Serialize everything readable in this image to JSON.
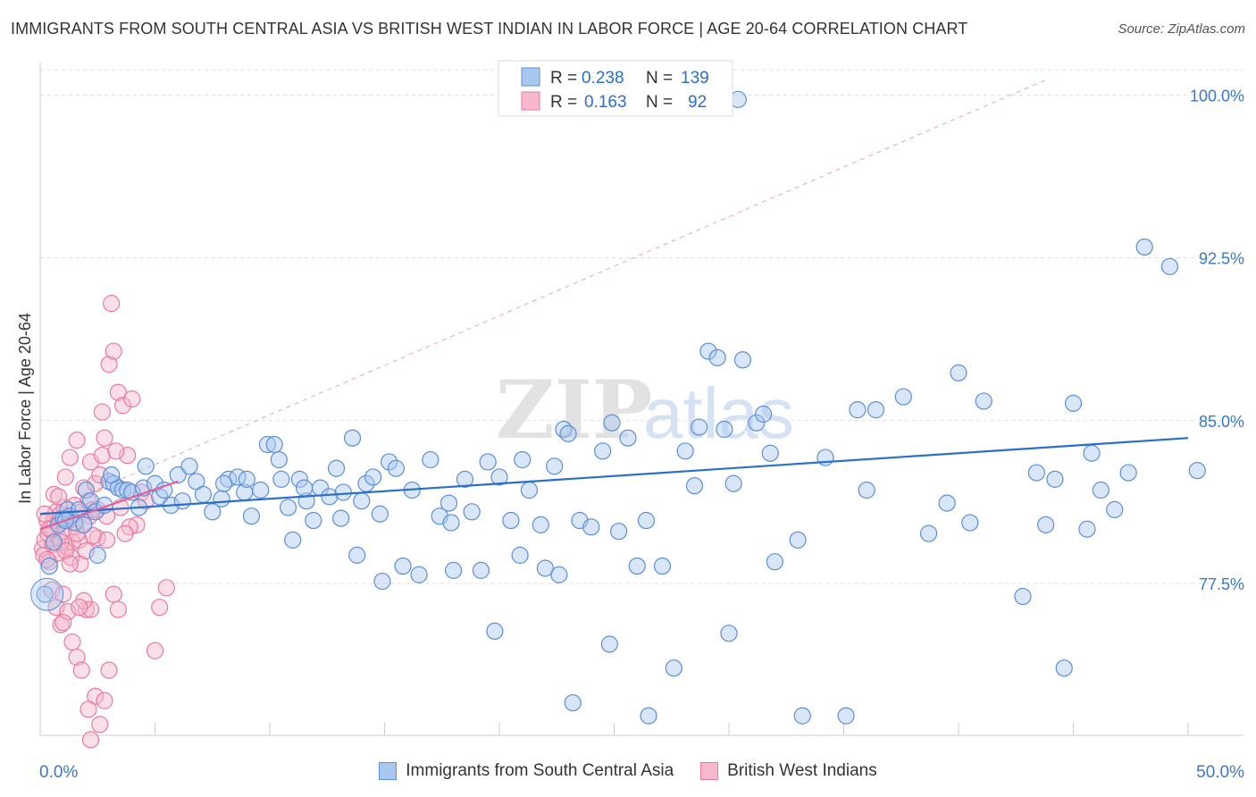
{
  "title": "IMMIGRANTS FROM SOUTH CENTRAL ASIA VS BRITISH WEST INDIAN IN LABOR FORCE | AGE 20-64 CORRELATION CHART",
  "source": "Source: ZipAtlas.com",
  "watermark": {
    "zip": "ZIP",
    "atlas": "atlas"
  },
  "colors": {
    "blue_fill": "#a8c8f0",
    "blue_stroke": "#5b8fd6",
    "blue_line": "#2a6fcc",
    "pink_fill": "#f5b8cc",
    "pink_stroke": "#e87aa0",
    "pink_line": "#e0609a",
    "axis_text": "#3a78c9",
    "grid": "#dddddd"
  },
  "chart_data": {
    "type": "scatter",
    "xlabel": "",
    "ylabel": "In Labor Force | Age 20-64",
    "xlim": [
      0,
      50
    ],
    "ylim": [
      70.5,
      101.5
    ],
    "x_tick_labels": [
      "0.0%",
      "50.0%"
    ],
    "y_ticks": [
      77.5,
      85.0,
      92.5,
      100.0
    ],
    "y_tick_labels": [
      "77.5%",
      "85.0%",
      "92.5%",
      "100.0%"
    ],
    "grid": "horizontal dashed",
    "legend_top": [
      {
        "r_label": "R =",
        "r_value": "0.238",
        "n_label": "N =",
        "n_value": "139"
      },
      {
        "r_label": "R =",
        "r_value": "0.163",
        "n_label": "N =",
        "n_value": "92"
      }
    ],
    "series": [
      {
        "name": "Immigrants from South Central Asia",
        "color": "blue",
        "trend": {
          "x": [
            0,
            50
          ],
          "y": [
            80.7,
            84.2
          ]
        },
        "points": [
          [
            0.2,
            77.0
          ],
          [
            0.4,
            78.3
          ],
          [
            0.6,
            79.4
          ],
          [
            0.8,
            80.2
          ],
          [
            1.0,
            80.5
          ],
          [
            1.2,
            80.9
          ],
          [
            1.3,
            80.6
          ],
          [
            1.5,
            80.3
          ],
          [
            1.7,
            80.9
          ],
          [
            2.0,
            81.8
          ],
          [
            2.2,
            81.3
          ],
          [
            2.4,
            80.8
          ],
          [
            2.5,
            78.8
          ],
          [
            3.0,
            82.2
          ],
          [
            3.2,
            82.1
          ],
          [
            3.4,
            81.9
          ],
          [
            3.6,
            81.8
          ],
          [
            3.8,
            81.8
          ],
          [
            4.0,
            81.7
          ],
          [
            4.3,
            81.0
          ],
          [
            4.5,
            81.9
          ],
          [
            4.6,
            82.9
          ],
          [
            5.0,
            82.1
          ],
          [
            5.2,
            81.5
          ],
          [
            5.4,
            81.8
          ],
          [
            5.7,
            81.1
          ],
          [
            6.0,
            82.5
          ],
          [
            6.5,
            82.9
          ],
          [
            6.8,
            82.2
          ],
          [
            7.1,
            81.6
          ],
          [
            7.5,
            80.8
          ],
          [
            7.9,
            81.4
          ],
          [
            8.2,
            82.3
          ],
          [
            8.6,
            82.4
          ],
          [
            8.9,
            81.7
          ],
          [
            9.2,
            80.6
          ],
          [
            9.6,
            81.8
          ],
          [
            9.9,
            83.9
          ],
          [
            10.2,
            83.9
          ],
          [
            10.4,
            83.2
          ],
          [
            10.8,
            81.0
          ],
          [
            11.3,
            82.3
          ],
          [
            11.6,
            81.3
          ],
          [
            11.9,
            80.4
          ],
          [
            12.2,
            81.9
          ],
          [
            12.6,
            81.5
          ],
          [
            12.9,
            82.8
          ],
          [
            13.1,
            80.5
          ],
          [
            13.6,
            84.2
          ],
          [
            13.8,
            78.8
          ],
          [
            14.0,
            81.3
          ],
          [
            14.2,
            82.1
          ],
          [
            14.5,
            82.4
          ],
          [
            14.8,
            80.7
          ],
          [
            15.2,
            83.1
          ],
          [
            15.5,
            82.8
          ],
          [
            15.8,
            78.3
          ],
          [
            16.2,
            81.8
          ],
          [
            16.5,
            77.9
          ],
          [
            17.0,
            83.2
          ],
          [
            17.4,
            80.6
          ],
          [
            17.8,
            81.2
          ],
          [
            17.9,
            80.3
          ],
          [
            18.0,
            78.1
          ],
          [
            18.5,
            82.3
          ],
          [
            18.8,
            80.8
          ],
          [
            19.2,
            78.1
          ],
          [
            19.5,
            83.1
          ],
          [
            20.0,
            82.4
          ],
          [
            20.5,
            80.4
          ],
          [
            20.9,
            78.8
          ],
          [
            21.3,
            81.8
          ],
          [
            21.8,
            80.2
          ],
          [
            22.0,
            78.2
          ],
          [
            22.4,
            82.9
          ],
          [
            22.8,
            84.6
          ],
          [
            23.0,
            84.4
          ],
          [
            23.5,
            80.4
          ],
          [
            24.0,
            80.1
          ],
          [
            24.5,
            83.6
          ],
          [
            24.9,
            84.9
          ],
          [
            25.2,
            79.9
          ],
          [
            25.6,
            84.2
          ],
          [
            26.0,
            78.3
          ],
          [
            26.4,
            80.4
          ],
          [
            27.1,
            78.3
          ],
          [
            27.6,
            73.6
          ],
          [
            28.1,
            83.6
          ],
          [
            28.5,
            82.0
          ],
          [
            28.7,
            84.7
          ],
          [
            29.1,
            88.2
          ],
          [
            29.5,
            87.9
          ],
          [
            29.8,
            84.6
          ],
          [
            30.2,
            82.1
          ],
          [
            30.6,
            87.8
          ],
          [
            31.2,
            84.9
          ],
          [
            31.5,
            85.3
          ],
          [
            31.8,
            83.5
          ],
          [
            32.0,
            78.5
          ],
          [
            33.0,
            79.5
          ],
          [
            34.2,
            83.3
          ],
          [
            35.1,
            71.4
          ],
          [
            35.6,
            85.5
          ],
          [
            36.0,
            81.8
          ],
          [
            36.4,
            85.5
          ],
          [
            37.6,
            86.1
          ],
          [
            38.7,
            79.8
          ],
          [
            39.5,
            81.2
          ],
          [
            40.0,
            87.2
          ],
          [
            40.5,
            80.3
          ],
          [
            41.1,
            85.9
          ],
          [
            42.8,
            76.9
          ],
          [
            43.4,
            82.6
          ],
          [
            43.8,
            80.2
          ],
          [
            44.2,
            82.3
          ],
          [
            44.6,
            73.6
          ],
          [
            45.0,
            85.8
          ],
          [
            45.6,
            80.0
          ],
          [
            45.8,
            83.5
          ],
          [
            46.2,
            81.8
          ],
          [
            46.8,
            80.9
          ],
          [
            47.4,
            82.6
          ],
          [
            48.1,
            93.0
          ],
          [
            49.2,
            92.1
          ],
          [
            50.4,
            82.7
          ],
          [
            1.1,
            80.4
          ],
          [
            1.9,
            80.2
          ],
          [
            2.8,
            81.1
          ],
          [
            3.1,
            82.5
          ],
          [
            6.2,
            81.3
          ],
          [
            8.0,
            82.1
          ],
          [
            9.0,
            82.3
          ],
          [
            10.5,
            82.3
          ],
          [
            11.5,
            81.9
          ],
          [
            13.2,
            81.7
          ],
          [
            21.0,
            83.2
          ],
          [
            26.5,
            71.4
          ],
          [
            30.0,
            75.2
          ],
          [
            23.2,
            72.0
          ],
          [
            33.2,
            71.4
          ],
          [
            24.8,
            74.7
          ],
          [
            22.6,
            77.9
          ],
          [
            19.8,
            75.3
          ],
          [
            14.9,
            77.6
          ],
          [
            11.0,
            79.5
          ],
          [
            30.4,
            99.8
          ]
        ]
      },
      {
        "name": "British West Indians",
        "color": "pink",
        "trend": {
          "x": [
            0,
            6.0
          ],
          "y": [
            80.0,
            82.2
          ]
        },
        "points": [
          [
            0.1,
            79.1
          ],
          [
            0.15,
            78.8
          ],
          [
            0.2,
            79.5
          ],
          [
            0.3,
            80.4
          ],
          [
            0.35,
            79.8
          ],
          [
            0.4,
            78.5
          ],
          [
            0.5,
            80.0
          ],
          [
            0.55,
            79.3
          ],
          [
            0.6,
            81.6
          ],
          [
            0.7,
            80.8
          ],
          [
            0.75,
            78.9
          ],
          [
            0.8,
            79.6
          ],
          [
            0.85,
            80.3
          ],
          [
            0.9,
            80.7
          ],
          [
            1.0,
            79.9
          ],
          [
            1.05,
            81.0
          ],
          [
            1.1,
            82.4
          ],
          [
            1.15,
            79.2
          ],
          [
            1.2,
            80.5
          ],
          [
            1.3,
            83.3
          ],
          [
            1.35,
            78.7
          ],
          [
            1.4,
            79.4
          ],
          [
            1.5,
            81.1
          ],
          [
            1.55,
            80.1
          ],
          [
            1.6,
            84.1
          ],
          [
            1.7,
            79.5
          ],
          [
            1.75,
            78.4
          ],
          [
            1.8,
            80.8
          ],
          [
            1.9,
            81.9
          ],
          [
            2.0,
            79.0
          ],
          [
            2.1,
            81.3
          ],
          [
            2.15,
            80.6
          ],
          [
            2.2,
            83.1
          ],
          [
            2.3,
            80.9
          ],
          [
            2.4,
            82.1
          ],
          [
            2.5,
            79.6
          ],
          [
            2.6,
            82.5
          ],
          [
            2.7,
            83.4
          ],
          [
            2.8,
            84.2
          ],
          [
            2.9,
            79.5
          ],
          [
            3.0,
            87.6
          ],
          [
            3.1,
            90.4
          ],
          [
            3.2,
            88.2
          ],
          [
            3.4,
            86.3
          ],
          [
            3.5,
            81.0
          ],
          [
            3.6,
            85.7
          ],
          [
            3.8,
            83.4
          ],
          [
            4.0,
            86.0
          ],
          [
            4.2,
            80.2
          ],
          [
            4.4,
            81.7
          ],
          [
            4.6,
            81.3
          ],
          [
            0.5,
            77.2
          ],
          [
            0.7,
            76.4
          ],
          [
            0.9,
            75.6
          ],
          [
            1.0,
            77.0
          ],
          [
            1.2,
            76.2
          ],
          [
            1.4,
            74.8
          ],
          [
            1.6,
            74.1
          ],
          [
            1.8,
            73.5
          ],
          [
            2.0,
            76.3
          ],
          [
            2.2,
            76.3
          ],
          [
            2.4,
            72.3
          ],
          [
            2.6,
            71.0
          ],
          [
            2.8,
            72.1
          ],
          [
            3.0,
            73.5
          ],
          [
            3.2,
            77.0
          ],
          [
            3.4,
            76.3
          ],
          [
            5.0,
            74.4
          ],
          [
            5.2,
            76.4
          ],
          [
            5.5,
            77.3
          ],
          [
            2.7,
            85.4
          ],
          [
            3.3,
            83.6
          ],
          [
            3.9,
            80.1
          ],
          [
            1.9,
            76.7
          ],
          [
            2.1,
            71.7
          ],
          [
            0.9,
            79.4
          ],
          [
            1.1,
            79.0
          ],
          [
            1.3,
            78.4
          ],
          [
            0.3,
            78.6
          ],
          [
            0.6,
            80.4
          ],
          [
            0.8,
            81.5
          ],
          [
            1.6,
            79.8
          ],
          [
            1.9,
            80.2
          ],
          [
            2.3,
            79.7
          ],
          [
            2.5,
            80.9
          ],
          [
            0.4,
            80.0
          ],
          [
            0.2,
            80.7
          ],
          [
            1.7,
            76.4
          ],
          [
            1.0,
            75.7
          ],
          [
            2.2,
            70.3
          ],
          [
            2.9,
            80.6
          ],
          [
            3.7,
            79.8
          ]
        ]
      }
    ]
  }
}
